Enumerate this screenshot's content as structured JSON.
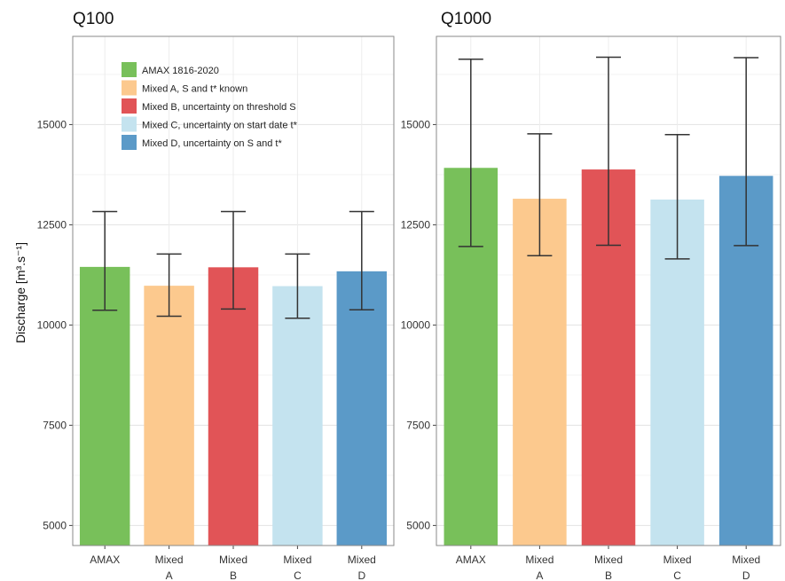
{
  "y_axis_label": "Discharge [m³.s⁻¹]",
  "legend": [
    {
      "label": "AMAX 1816-2020",
      "color": "#78c05a"
    },
    {
      "label": "Mixed A, S and t* known",
      "color": "#fcc98e"
    },
    {
      "label": "Mixed B, uncertainty on threshold S",
      "color": "#e15457"
    },
    {
      "label": "Mixed C, uncertainty on start date t*",
      "color": "#c4e3ef"
    },
    {
      "label": "Mixed D, uncertainty on S and t*",
      "color": "#5b9ac8"
    }
  ],
  "chart_data": [
    {
      "type": "bar",
      "title": "Q100",
      "ylabel": "Discharge [m³.s⁻¹]",
      "ylim": [
        4500,
        17200
      ],
      "yticks": [
        5000,
        7500,
        10000,
        12500,
        15000
      ],
      "grid": true,
      "legend_position": "top-left",
      "categories": [
        [
          "AMAX",
          ""
        ],
        [
          "Mixed",
          "A"
        ],
        [
          "Mixed",
          "B"
        ],
        [
          "Mixed",
          "C"
        ],
        [
          "Mixed",
          "D"
        ]
      ],
      "values": [
        11450,
        10980,
        11440,
        10970,
        11340
      ],
      "error_low": [
        10370,
        10220,
        10400,
        10170,
        10380
      ],
      "error_high": [
        12830,
        11770,
        12830,
        11770,
        12830
      ],
      "colors": [
        "#78c05a",
        "#fcc98e",
        "#e15457",
        "#c4e3ef",
        "#5b9ac8"
      ]
    },
    {
      "type": "bar",
      "title": "Q1000",
      "ylabel": "",
      "ylim": [
        4500,
        17200
      ],
      "yticks": [
        5000,
        7500,
        10000,
        12500,
        15000
      ],
      "grid": true,
      "categories": [
        [
          "AMAX",
          ""
        ],
        [
          "Mixed",
          "A"
        ],
        [
          "Mixed",
          "B"
        ],
        [
          "Mixed",
          "C"
        ],
        [
          "Mixed",
          "D"
        ]
      ],
      "values": [
        13920,
        13150,
        13880,
        13130,
        13720
      ],
      "error_low": [
        11960,
        11730,
        11990,
        11650,
        11980
      ],
      "error_high": [
        16630,
        14770,
        16680,
        14750,
        16670
      ],
      "colors": [
        "#78c05a",
        "#fcc98e",
        "#e15457",
        "#c4e3ef",
        "#5b9ac8"
      ]
    }
  ]
}
